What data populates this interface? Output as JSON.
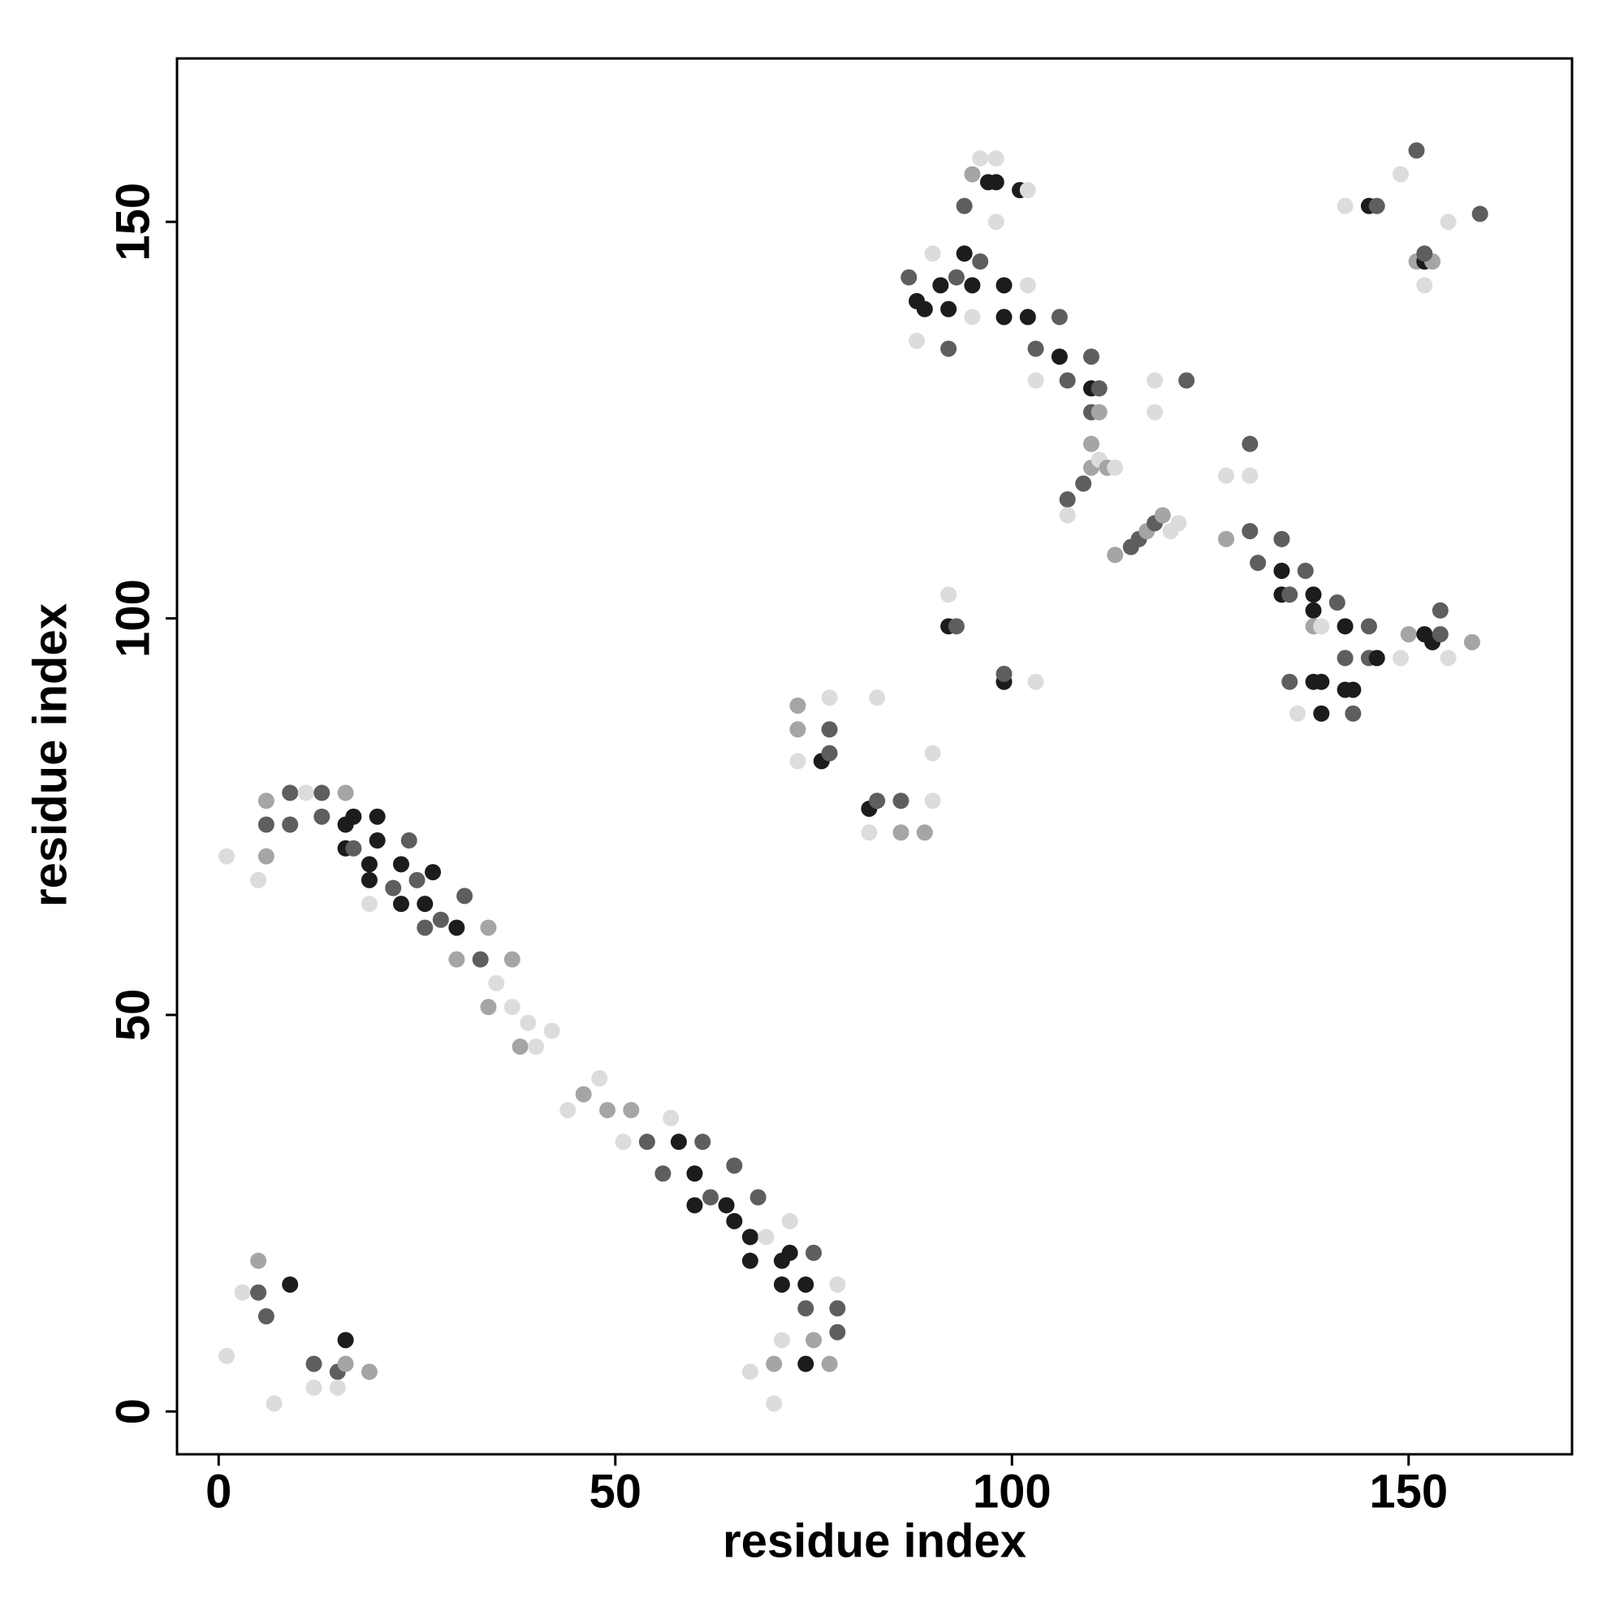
{
  "chart_data": {
    "type": "scatter",
    "x_label": "residue index",
    "y_label": "residue index",
    "xlim": [
      -5.25,
      170.6
    ],
    "ylim": [
      -5.4,
      170.6
    ],
    "xticks": [
      0,
      50,
      100,
      150
    ],
    "yticks": [
      0,
      50,
      100,
      150
    ],
    "x": [
      1,
      5,
      6,
      6,
      6,
      9,
      9,
      11,
      13,
      13,
      16,
      16,
      16,
      17,
      17,
      19,
      20,
      20,
      19,
      22,
      23,
      23,
      24,
      25,
      26,
      27,
      26,
      28,
      30,
      31,
      30,
      33,
      34,
      35,
      37,
      37,
      38,
      39,
      42,
      40,
      34,
      19,
      44,
      46,
      48,
      49,
      51,
      52,
      54,
      56,
      57,
      58,
      60,
      60,
      61,
      62,
      64,
      65,
      65,
      67,
      68,
      67,
      69,
      71,
      72,
      71,
      72,
      74,
      75,
      74,
      75,
      78,
      78,
      78,
      74,
      70,
      67,
      70,
      77,
      71,
      1,
      3,
      5,
      5,
      6,
      9,
      7,
      12,
      12,
      15,
      16,
      15,
      19,
      16,
      73,
      73,
      73,
      76,
      77,
      77,
      77,
      83,
      82,
      83,
      86,
      86,
      82,
      89,
      90,
      90,
      92,
      93,
      92,
      99,
      99,
      103,
      87,
      88,
      88,
      89,
      90,
      91,
      92,
      92,
      93,
      94,
      95,
      95,
      96,
      94,
      95,
      96,
      97,
      98,
      98,
      98,
      99,
      99,
      101,
      102,
      102,
      102,
      103,
      103,
      106,
      106,
      107,
      110,
      110,
      110,
      111,
      111,
      110,
      107,
      109,
      110,
      111,
      112,
      113,
      107,
      113,
      115,
      116,
      117,
      118,
      119,
      120,
      121,
      118,
      118,
      122,
      127,
      130,
      130,
      127,
      130,
      131,
      134,
      134,
      134,
      135,
      137,
      138,
      138,
      138,
      139,
      141,
      142,
      142,
      138,
      139,
      139,
      136,
      142,
      143,
      143,
      145,
      146,
      145,
      135,
      149,
      150,
      152,
      153,
      154,
      154,
      155,
      158,
      142,
      145,
      146,
      149,
      151,
      151,
      152,
      153,
      152,
      155,
      159,
      152
    ],
    "y": [
      70,
      67,
      70,
      74,
      77,
      78,
      74,
      78,
      78,
      75,
      78,
      74,
      71,
      75,
      71,
      69,
      75,
      72,
      67,
      66,
      69,
      64,
      72,
      67,
      64,
      68,
      61,
      62,
      61,
      65,
      57,
      57,
      61,
      54,
      57,
      51,
      46,
      49,
      48,
      46,
      51,
      64,
      38,
      40,
      42,
      38,
      34,
      38,
      34,
      30,
      37,
      34,
      30,
      26,
      34,
      27,
      26,
      31,
      24,
      22,
      27,
      19,
      22,
      19,
      24,
      16,
      20,
      16,
      20,
      13,
      9,
      16,
      13,
      10,
      6,
      6,
      5,
      1,
      6,
      9,
      7,
      15,
      19,
      15,
      12,
      16,
      1,
      6,
      3,
      5,
      9,
      3,
      5,
      6,
      89,
      86,
      82,
      82,
      86,
      83,
      90,
      90,
      76,
      77,
      77,
      73,
      73,
      73,
      77,
      83,
      99,
      99,
      103,
      92,
      93,
      92,
      143,
      140,
      135,
      139,
      146,
      142,
      139,
      134,
      143,
      146,
      142,
      138,
      145,
      152,
      156,
      158,
      155,
      155,
      158,
      150,
      142,
      138,
      154,
      154,
      142,
      138,
      134,
      130,
      133,
      138,
      130,
      133,
      129,
      126,
      129,
      126,
      122,
      115,
      117,
      119,
      120,
      119,
      119,
      113,
      108,
      109,
      110,
      111,
      112,
      113,
      111,
      112,
      130,
      126,
      130,
      118,
      122,
      118,
      110,
      111,
      107,
      110,
      106,
      103,
      103,
      106,
      103,
      101,
      99,
      99,
      102,
      99,
      95,
      92,
      92,
      88,
      88,
      91,
      91,
      88,
      95,
      95,
      99,
      92,
      95,
      98,
      98,
      97,
      98,
      101,
      95,
      97,
      152,
      152,
      152,
      156,
      159,
      145,
      145,
      145,
      142,
      150,
      151,
      146
    ],
    "colors": [
      "#dcdcdc",
      "#dcdcdc",
      "#a5a5a5",
      "#5e5e5e",
      "#a5a5a5",
      "#5e5e5e",
      "#5e5e5e",
      "#dcdcdc",
      "#5e5e5e",
      "#5e5e5e",
      "#a5a5a5",
      "#1c1c1c",
      "#1c1c1c",
      "#1c1c1c",
      "#5e5e5e",
      "#1c1c1c",
      "#1c1c1c",
      "#1c1c1c",
      "#1c1c1c",
      "#5e5e5e",
      "#1c1c1c",
      "#1c1c1c",
      "#5e5e5e",
      "#5e5e5e",
      "#1c1c1c",
      "#1c1c1c",
      "#5e5e5e",
      "#5e5e5e",
      "#1c1c1c",
      "#5e5e5e",
      "#a5a5a5",
      "#5e5e5e",
      "#a5a5a5",
      "#dcdcdc",
      "#a5a5a5",
      "#dcdcdc",
      "#a5a5a5",
      "#dcdcdc",
      "#dcdcdc",
      "#dcdcdc",
      "#a5a5a5",
      "#dcdcdc",
      "#dcdcdc",
      "#a5a5a5",
      "#dcdcdc",
      "#a5a5a5",
      "#dcdcdc",
      "#a5a5a5",
      "#5e5e5e",
      "#5e5e5e",
      "#dcdcdc",
      "#1c1c1c",
      "#1c1c1c",
      "#1c1c1c",
      "#5e5e5e",
      "#5e5e5e",
      "#1c1c1c",
      "#5e5e5e",
      "#1c1c1c",
      "#1c1c1c",
      "#5e5e5e",
      "#1c1c1c",
      "#dcdcdc",
      "#1c1c1c",
      "#dcdcdc",
      "#1c1c1c",
      "#1c1c1c",
      "#1c1c1c",
      "#5e5e5e",
      "#5e5e5e",
      "#a5a5a5",
      "#dcdcdc",
      "#5e5e5e",
      "#5e5e5e",
      "#1c1c1c",
      "#a5a5a5",
      "#dcdcdc",
      "#dcdcdc",
      "#a5a5a5",
      "#dcdcdc",
      "#dcdcdc",
      "#dcdcdc",
      "#a5a5a5",
      "#5e5e5e",
      "#5e5e5e",
      "#1c1c1c",
      "#dcdcdc",
      "#5e5e5e",
      "#dcdcdc",
      "#5e5e5e",
      "#1c1c1c",
      "#dcdcdc",
      "#a5a5a5",
      "#a5a5a5",
      "#a5a5a5",
      "#a5a5a5",
      "#dcdcdc",
      "#1c1c1c",
      "#5e5e5e",
      "#5e5e5e",
      "#dcdcdc",
      "#dcdcdc",
      "#1c1c1c",
      "#5e5e5e",
      "#5e5e5e",
      "#a5a5a5",
      "#dcdcdc",
      "#a5a5a5",
      "#dcdcdc",
      "#dcdcdc",
      "#1c1c1c",
      "#5e5e5e",
      "#dcdcdc",
      "#1c1c1c",
      "#5e5e5e",
      "#dcdcdc",
      "#5e5e5e",
      "#1c1c1c",
      "#dcdcdc",
      "#1c1c1c",
      "#dcdcdc",
      "#1c1c1c",
      "#1c1c1c",
      "#5e5e5e",
      "#5e5e5e",
      "#1c1c1c",
      "#1c1c1c",
      "#dcdcdc",
      "#5e5e5e",
      "#5e5e5e",
      "#a5a5a5",
      "#dcdcdc",
      "#1c1c1c",
      "#1c1c1c",
      "#dcdcdc",
      "#dcdcdc",
      "#1c1c1c",
      "#1c1c1c",
      "#1c1c1c",
      "#dcdcdc",
      "#dcdcdc",
      "#1c1c1c",
      "#5e5e5e",
      "#dcdcdc",
      "#1c1c1c",
      "#5e5e5e",
      "#5e5e5e",
      "#5e5e5e",
      "#1c1c1c",
      "#5e5e5e",
      "#5e5e5e",
      "#a5a5a5",
      "#a5a5a5",
      "#5e5e5e",
      "#5e5e5e",
      "#a5a5a5",
      "#dcdcdc",
      "#a5a5a5",
      "#dcdcdc",
      "#dcdcdc",
      "#a5a5a5",
      "#5e5e5e",
      "#5e5e5e",
      "#a5a5a5",
      "#5e5e5e",
      "#a5a5a5",
      "#dcdcdc",
      "#dcdcdc",
      "#dcdcdc",
      "#dcdcdc",
      "#5e5e5e",
      "#dcdcdc",
      "#5e5e5e",
      "#dcdcdc",
      "#a5a5a5",
      "#5e5e5e",
      "#5e5e5e",
      "#5e5e5e",
      "#1c1c1c",
      "#1c1c1c",
      "#5e5e5e",
      "#5e5e5e",
      "#1c1c1c",
      "#1c1c1c",
      "#a5a5a5",
      "#dcdcdc",
      "#5e5e5e",
      "#1c1c1c",
      "#5e5e5e",
      "#1c1c1c",
      "#1c1c1c",
      "#1c1c1c",
      "#dcdcdc",
      "#1c1c1c",
      "#1c1c1c",
      "#5e5e5e",
      "#5e5e5e",
      "#1c1c1c",
      "#5e5e5e",
      "#5e5e5e",
      "#dcdcdc",
      "#a5a5a5",
      "#1c1c1c",
      "#1c1c1c",
      "#5e5e5e",
      "#5e5e5e",
      "#dcdcdc",
      "#a5a5a5",
      "#dcdcdc",
      "#1c1c1c",
      "#5e5e5e",
      "#dcdcdc",
      "#5e5e5e",
      "#a5a5a5",
      "#1c1c1c",
      "#a5a5a5",
      "#dcdcdc",
      "#dcdcdc",
      "#5e5e5e",
      "#5e5e5e"
    ]
  }
}
